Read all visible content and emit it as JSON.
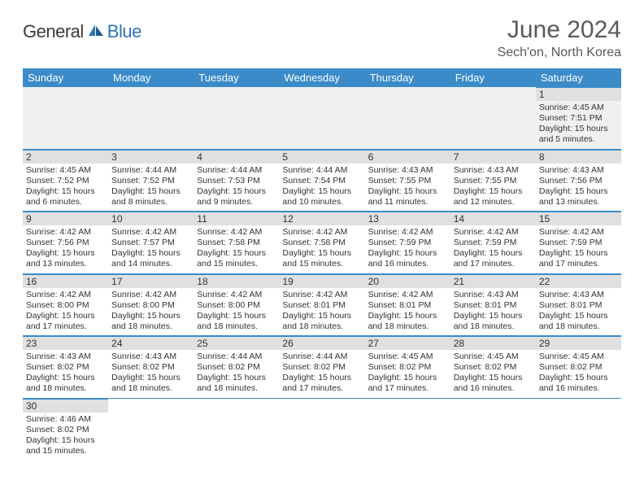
{
  "logo": {
    "text1": "General",
    "text2": "Blue"
  },
  "title": "June 2024",
  "location": "Sech'on, North Korea",
  "colors": {
    "header_bg": "#3b8bc9",
    "header_text": "#ffffff",
    "daynum_bg": "#e0e0e0",
    "border": "#3b8bc9",
    "text": "#333333",
    "logo_gray": "#3a3a3a",
    "logo_blue": "#2e75b6"
  },
  "day_headers": [
    "Sunday",
    "Monday",
    "Tuesday",
    "Wednesday",
    "Thursday",
    "Friday",
    "Saturday"
  ],
  "weeks": [
    [
      null,
      null,
      null,
      null,
      null,
      null,
      {
        "n": "1",
        "sr": "4:45 AM",
        "ss": "7:51 PM",
        "dl": "15 hours and 5 minutes."
      }
    ],
    [
      {
        "n": "2",
        "sr": "4:45 AM",
        "ss": "7:52 PM",
        "dl": "15 hours and 6 minutes."
      },
      {
        "n": "3",
        "sr": "4:44 AM",
        "ss": "7:52 PM",
        "dl": "15 hours and 8 minutes."
      },
      {
        "n": "4",
        "sr": "4:44 AM",
        "ss": "7:53 PM",
        "dl": "15 hours and 9 minutes."
      },
      {
        "n": "5",
        "sr": "4:44 AM",
        "ss": "7:54 PM",
        "dl": "15 hours and 10 minutes."
      },
      {
        "n": "6",
        "sr": "4:43 AM",
        "ss": "7:55 PM",
        "dl": "15 hours and 11 minutes."
      },
      {
        "n": "7",
        "sr": "4:43 AM",
        "ss": "7:55 PM",
        "dl": "15 hours and 12 minutes."
      },
      {
        "n": "8",
        "sr": "4:43 AM",
        "ss": "7:56 PM",
        "dl": "15 hours and 13 minutes."
      }
    ],
    [
      {
        "n": "9",
        "sr": "4:42 AM",
        "ss": "7:56 PM",
        "dl": "15 hours and 13 minutes."
      },
      {
        "n": "10",
        "sr": "4:42 AM",
        "ss": "7:57 PM",
        "dl": "15 hours and 14 minutes."
      },
      {
        "n": "11",
        "sr": "4:42 AM",
        "ss": "7:58 PM",
        "dl": "15 hours and 15 minutes."
      },
      {
        "n": "12",
        "sr": "4:42 AM",
        "ss": "7:58 PM",
        "dl": "15 hours and 15 minutes."
      },
      {
        "n": "13",
        "sr": "4:42 AM",
        "ss": "7:59 PM",
        "dl": "15 hours and 16 minutes."
      },
      {
        "n": "14",
        "sr": "4:42 AM",
        "ss": "7:59 PM",
        "dl": "15 hours and 17 minutes."
      },
      {
        "n": "15",
        "sr": "4:42 AM",
        "ss": "7:59 PM",
        "dl": "15 hours and 17 minutes."
      }
    ],
    [
      {
        "n": "16",
        "sr": "4:42 AM",
        "ss": "8:00 PM",
        "dl": "15 hours and 17 minutes."
      },
      {
        "n": "17",
        "sr": "4:42 AM",
        "ss": "8:00 PM",
        "dl": "15 hours and 18 minutes."
      },
      {
        "n": "18",
        "sr": "4:42 AM",
        "ss": "8:00 PM",
        "dl": "15 hours and 18 minutes."
      },
      {
        "n": "19",
        "sr": "4:42 AM",
        "ss": "8:01 PM",
        "dl": "15 hours and 18 minutes."
      },
      {
        "n": "20",
        "sr": "4:42 AM",
        "ss": "8:01 PM",
        "dl": "15 hours and 18 minutes."
      },
      {
        "n": "21",
        "sr": "4:43 AM",
        "ss": "8:01 PM",
        "dl": "15 hours and 18 minutes."
      },
      {
        "n": "22",
        "sr": "4:43 AM",
        "ss": "8:01 PM",
        "dl": "15 hours and 18 minutes."
      }
    ],
    [
      {
        "n": "23",
        "sr": "4:43 AM",
        "ss": "8:02 PM",
        "dl": "15 hours and 18 minutes."
      },
      {
        "n": "24",
        "sr": "4:43 AM",
        "ss": "8:02 PM",
        "dl": "15 hours and 18 minutes."
      },
      {
        "n": "25",
        "sr": "4:44 AM",
        "ss": "8:02 PM",
        "dl": "15 hours and 18 minutes."
      },
      {
        "n": "26",
        "sr": "4:44 AM",
        "ss": "8:02 PM",
        "dl": "15 hours and 17 minutes."
      },
      {
        "n": "27",
        "sr": "4:45 AM",
        "ss": "8:02 PM",
        "dl": "15 hours and 17 minutes."
      },
      {
        "n": "28",
        "sr": "4:45 AM",
        "ss": "8:02 PM",
        "dl": "15 hours and 16 minutes."
      },
      {
        "n": "29",
        "sr": "4:45 AM",
        "ss": "8:02 PM",
        "dl": "15 hours and 16 minutes."
      }
    ],
    [
      {
        "n": "30",
        "sr": "4:46 AM",
        "ss": "8:02 PM",
        "dl": "15 hours and 15 minutes."
      },
      null,
      null,
      null,
      null,
      null,
      null
    ]
  ],
  "labels": {
    "sunrise": "Sunrise:",
    "sunset": "Sunset:",
    "daylight": "Daylight:"
  }
}
